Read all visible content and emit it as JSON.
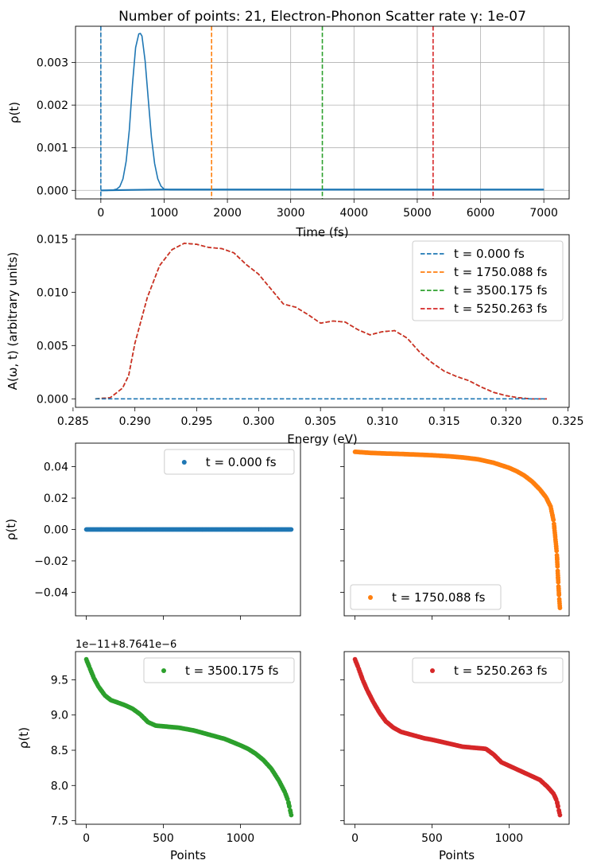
{
  "chart_data": [
    {
      "id": "density-vs-time",
      "type": "line",
      "title": "Number of points: 21, Electron-Phonon Scatter rate γ: 1e-07",
      "xlabel": "Time (fs)",
      "ylabel": "ρ(t)",
      "xlim": [
        -400,
        7400
      ],
      "ylim": [
        -0.0002,
        0.00385
      ],
      "xticks": [
        0,
        1000,
        2000,
        3000,
        4000,
        5000,
        6000,
        7000
      ],
      "yticks": [
        0.0,
        0.001,
        0.002,
        0.003
      ],
      "ytick_labels": [
        "0.000",
        "0.001",
        "0.002",
        "0.003"
      ],
      "grid": true,
      "series": [
        {
          "style": "solid",
          "color": "#1f77b4",
          "x": [
            0,
            100,
            200,
            250,
            300,
            350,
            400,
            450,
            500,
            550,
            600,
            625,
            650,
            700,
            750,
            800,
            850,
            900,
            950,
            1000,
            1100,
            1300,
            2000,
            3000,
            4000,
            5000,
            6000,
            7000
          ],
          "y": [
            0,
            0,
            1e-05,
            3e-05,
            9e-05,
            0.00027,
            0.00068,
            0.00142,
            0.0025,
            0.00335,
            0.00367,
            0.00368,
            0.00362,
            0.00303,
            0.00212,
            0.00125,
            0.00063,
            0.00027,
            0.0001,
            3e-05,
            1e-05,
            1e-05,
            1e-05,
            1e-05,
            1e-05,
            1e-05,
            1e-05,
            1e-05
          ]
        },
        {
          "style": "solid",
          "color": "#1f77b4",
          "x": [
            0,
            500,
            1000,
            2000,
            3000,
            4000,
            5000,
            6000,
            7000
          ],
          "y": [
            0,
            1e-05,
            2e-05,
            2e-05,
            2e-05,
            2e-05,
            2e-05,
            2e-05,
            2e-05
          ]
        }
      ],
      "vlines": [
        {
          "x": 0.0,
          "color": "#1f77b4"
        },
        {
          "x": 1750.088,
          "color": "#ff7f0e"
        },
        {
          "x": 3500.175,
          "color": "#2ca02c"
        },
        {
          "x": 5250.263,
          "color": "#d62728"
        }
      ]
    },
    {
      "id": "spectral-function",
      "type": "line",
      "xlabel": "Energy (eV)",
      "ylabel": "A(ω, t) (arbitrary units)",
      "xlim": [
        0.2852,
        0.3251
      ],
      "ylim": [
        -0.0008,
        0.0154
      ],
      "xticks": [
        0.285,
        0.29,
        0.295,
        0.3,
        0.305,
        0.31,
        0.315,
        0.32,
        0.325
      ],
      "xtick_labels": [
        "0.285",
        "0.290",
        "0.295",
        "0.300",
        "0.305",
        "0.310",
        "0.315",
        "0.320",
        "0.325"
      ],
      "yticks": [
        0.0,
        0.005,
        0.01,
        0.015
      ],
      "ytick_labels": [
        "0.000",
        "0.005",
        "0.010",
        "0.015"
      ],
      "grid": false,
      "legend": "top-right",
      "series": [
        {
          "name": "t = 0.000 fs",
          "color": "#1f77b4",
          "style": "dashed",
          "x": [
            0.2868,
            0.3233
          ],
          "y": [
            0,
            0
          ]
        },
        {
          "name": "t = 1750.088 fs",
          "color": "#ff7f0e",
          "style": "dashed",
          "x": [
            0.2868,
            0.288,
            0.289,
            0.2895,
            0.29,
            0.291,
            0.292,
            0.293,
            0.294,
            0.295,
            0.296,
            0.297,
            0.298,
            0.299,
            0.3,
            0.301,
            0.302,
            0.303,
            0.304,
            0.305,
            0.306,
            0.307,
            0.308,
            0.309,
            0.31,
            0.311,
            0.312,
            0.313,
            0.314,
            0.315,
            0.316,
            0.317,
            0.318,
            0.319,
            0.32,
            0.321,
            0.322,
            0.3233
          ],
          "y": [
            0,
            0.0001,
            0.001,
            0.0022,
            0.0052,
            0.0095,
            0.0125,
            0.014,
            0.0146,
            0.0145,
            0.0142,
            0.0141,
            0.0137,
            0.0126,
            0.0117,
            0.0103,
            0.0089,
            0.0086,
            0.0079,
            0.0071,
            0.0073,
            0.0072,
            0.0065,
            0.006,
            0.0063,
            0.0064,
            0.0057,
            0.0044,
            0.0034,
            0.0026,
            0.0021,
            0.0017,
            0.0011,
            0.0006,
            0.0003,
            0.0001,
            0.0,
            0.0
          ]
        },
        {
          "name": "t = 3500.175 fs",
          "color": "#2ca02c",
          "style": "dashed",
          "same_as": 1
        },
        {
          "name": "t = 5250.263 fs",
          "color": "#d62728",
          "style": "dashed",
          "same_as": 1
        }
      ]
    },
    {
      "id": "points-t0",
      "type": "scatter",
      "ylabel": "ρ(t)",
      "xlim": [
        -70,
        1390
      ],
      "ylim": [
        -0.055,
        0.055
      ],
      "xticks": [
        0,
        500,
        1000
      ],
      "yticks": [
        -0.04,
        -0.02,
        0.0,
        0.02,
        0.04
      ],
      "ytick_labels": [
        "−0.04",
        "−0.02",
        "0.00",
        "0.02",
        "0.04"
      ],
      "legend": "top-right",
      "series": [
        {
          "name": "t = 0.000 fs",
          "color": "#1f77b4",
          "x": [
            0,
            1330
          ],
          "y": [
            0,
            0
          ]
        }
      ]
    },
    {
      "id": "points-t1750",
      "type": "scatter",
      "xlim": [
        -70,
        1390
      ],
      "ylim": [
        -0.055,
        0.055
      ],
      "xticks": [
        0,
        500,
        1000
      ],
      "yticks": [
        -0.04,
        -0.02,
        0.0,
        0.02,
        0.04
      ],
      "legend": "bottom-left",
      "series": [
        {
          "name": "t = 1750.088 fs",
          "color": "#ff7f0e",
          "x": [
            0,
            100,
            200,
            300,
            400,
            500,
            600,
            700,
            800,
            900,
            1000,
            1050,
            1100,
            1150,
            1200,
            1240,
            1270,
            1290,
            1300,
            1310,
            1315,
            1320,
            1325,
            1330
          ],
          "y": [
            0.0495,
            0.0488,
            0.0484,
            0.0481,
            0.0477,
            0.0473,
            0.0467,
            0.0459,
            0.0447,
            0.0425,
            0.0393,
            0.0371,
            0.0343,
            0.0305,
            0.0255,
            0.0205,
            0.0145,
            0.005,
            -0.005,
            -0.015,
            -0.025,
            -0.035,
            -0.043,
            -0.05
          ]
        }
      ]
    },
    {
      "id": "points-t3500",
      "type": "scatter",
      "xlabel": "Points",
      "ylabel": "ρ(t)",
      "offset_text": "1e−11+8.7641e−6",
      "xlim": [
        -70,
        1390
      ],
      "ylim": [
        7.45,
        9.9
      ],
      "xticks": [
        0,
        500,
        1000
      ],
      "yticks": [
        7.5,
        8.0,
        8.5,
        9.0,
        9.5
      ],
      "ytick_labels": [
        "7.5",
        "8.0",
        "8.5",
        "9.0",
        "9.5"
      ],
      "legend": "top-right",
      "series": [
        {
          "name": "t = 3500.175 fs",
          "color": "#2ca02c",
          "x": [
            0,
            20,
            50,
            80,
            120,
            160,
            200,
            250,
            300,
            350,
            400,
            450,
            500,
            600,
            700,
            800,
            900,
            1000,
            1050,
            1100,
            1150,
            1200,
            1250,
            1290,
            1310,
            1320,
            1330
          ],
          "y": [
            9.79,
            9.68,
            9.52,
            9.4,
            9.28,
            9.21,
            9.18,
            9.14,
            9.09,
            9.01,
            8.9,
            8.85,
            8.84,
            8.82,
            8.78,
            8.72,
            8.66,
            8.57,
            8.52,
            8.45,
            8.36,
            8.24,
            8.07,
            7.9,
            7.78,
            7.68,
            7.58
          ]
        }
      ]
    },
    {
      "id": "points-t5250",
      "type": "scatter",
      "xlabel": "Points",
      "xlim": [
        -70,
        1390
      ],
      "ylim": [
        7.45,
        9.9
      ],
      "xticks": [
        0,
        500,
        1000
      ],
      "yticks": [
        7.5,
        8.0,
        8.5,
        9.0,
        9.5
      ],
      "legend": "top-right",
      "series": [
        {
          "name": "t = 5250.263 fs",
          "color": "#d62728",
          "x": [
            0,
            20,
            50,
            80,
            120,
            160,
            200,
            250,
            300,
            350,
            400,
            450,
            500,
            600,
            700,
            800,
            850,
            900,
            950,
            1000,
            1050,
            1100,
            1150,
            1200,
            1250,
            1290,
            1310,
            1320,
            1330
          ],
          "y": [
            9.79,
            9.68,
            9.5,
            9.35,
            9.18,
            9.03,
            8.91,
            8.82,
            8.76,
            8.73,
            8.7,
            8.67,
            8.65,
            8.6,
            8.55,
            8.53,
            8.52,
            8.44,
            8.33,
            8.28,
            8.23,
            8.18,
            8.13,
            8.08,
            7.98,
            7.88,
            7.78,
            7.68,
            7.58
          ]
        }
      ]
    }
  ]
}
